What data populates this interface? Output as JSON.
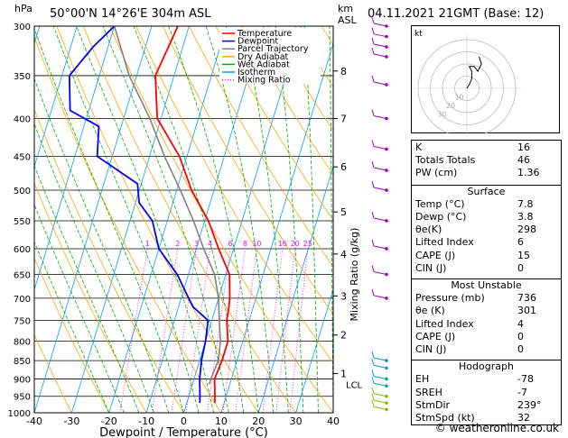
{
  "header": {
    "left": "50°00'N  14°26'E  304m  ASL",
    "hpa_unit": "hPa",
    "km_unit_1": "km",
    "km_unit_2": "ASL",
    "right": "04.11.2021  21GMT  (Base: 12)"
  },
  "chart_data": {
    "type": "line",
    "xlabel": "Dewpoint / Temperature (°C)",
    "ylabel_right": "Mixing Ratio (g/kg)",
    "x_ticks": [
      -40,
      -30,
      -20,
      -10,
      0,
      10,
      20,
      30,
      40
    ],
    "x_range": [
      -40,
      40
    ],
    "pressure_levels": [
      300,
      350,
      400,
      450,
      500,
      550,
      600,
      650,
      700,
      750,
      800,
      850,
      900,
      950,
      1000
    ],
    "pressure_range": [
      300,
      1000
    ],
    "km_ticks": [
      {
        "label": "8",
        "p": 345
      },
      {
        "label": "7",
        "p": 400
      },
      {
        "label": "6",
        "p": 465
      },
      {
        "label": "5",
        "p": 535
      },
      {
        "label": "4",
        "p": 610
      },
      {
        "label": "3",
        "p": 695
      },
      {
        "label": "2",
        "p": 785
      },
      {
        "label": "1",
        "p": 885
      }
    ],
    "lcl": {
      "label": "LCL",
      "p": 915
    },
    "mixing_ratio_labels": [
      "1",
      "2",
      "3",
      "4",
      "6",
      "8",
      "10",
      "16",
      "20",
      "25"
    ],
    "legend": [
      {
        "name": "Temperature",
        "color": "#ff0000",
        "style": "solid"
      },
      {
        "name": "Dewpoint",
        "color": "#0000ff",
        "style": "solid"
      },
      {
        "name": "Parcel Trajectory",
        "color": "#808080",
        "style": "solid"
      },
      {
        "name": "Dry Adiabat",
        "color": "#ffa500",
        "style": "solid"
      },
      {
        "name": "Wet Adiabat",
        "color": "#00b000",
        "style": "solid"
      },
      {
        "name": "Isotherm",
        "color": "#00a0ff",
        "style": "solid"
      },
      {
        "name": "Mixing Ratio",
        "color": "#ff00ff",
        "style": "dotted"
      }
    ],
    "series": [
      {
        "name": "Temperature",
        "color": "#ff0000",
        "points": [
          [
            300,
            -33
          ],
          [
            350,
            -35
          ],
          [
            400,
            -31
          ],
          [
            450,
            -22
          ],
          [
            500,
            -16
          ],
          [
            550,
            -9
          ],
          [
            600,
            -4
          ],
          [
            650,
            1
          ],
          [
            700,
            3
          ],
          [
            720,
            3.5
          ],
          [
            750,
            4
          ],
          [
            800,
            6
          ],
          [
            850,
            6
          ],
          [
            900,
            5.5
          ],
          [
            950,
            7
          ],
          [
            970,
            7.5
          ]
        ]
      },
      {
        "name": "Dewpoint",
        "color": "#0000ff",
        "points": [
          [
            300,
            -50
          ],
          [
            320,
            -54
          ],
          [
            350,
            -58
          ],
          [
            390,
            -55
          ],
          [
            410,
            -46
          ],
          [
            450,
            -44
          ],
          [
            490,
            -31
          ],
          [
            520,
            -29
          ],
          [
            550,
            -24
          ],
          [
            600,
            -20
          ],
          [
            650,
            -13
          ],
          [
            700,
            -8
          ],
          [
            720,
            -6
          ],
          [
            750,
            -1
          ],
          [
            800,
            0
          ],
          [
            850,
            0.5
          ],
          [
            900,
            1.5
          ],
          [
            950,
            3
          ],
          [
            970,
            3.5
          ]
        ]
      },
      {
        "name": "Parcel Trajectory",
        "color": "#808080",
        "points": [
          [
            300,
            -50
          ],
          [
            350,
            -42
          ],
          [
            400,
            -33
          ],
          [
            450,
            -26
          ],
          [
            500,
            -19
          ],
          [
            550,
            -13
          ],
          [
            600,
            -8
          ],
          [
            650,
            -3
          ],
          [
            700,
            0
          ],
          [
            750,
            2
          ],
          [
            800,
            4
          ],
          [
            850,
            5
          ],
          [
            900,
            4.5
          ],
          [
            915,
            4.5
          ]
        ]
      }
    ]
  },
  "hodograph": {
    "unit": "kt",
    "ring_labels": [
      "10",
      "20",
      "30"
    ],
    "trace_kt": [
      [
        0,
        0
      ],
      [
        2,
        3
      ],
      [
        4,
        8
      ],
      [
        4,
        14
      ],
      [
        2,
        18
      ],
      [
        6,
        18
      ],
      [
        9,
        14
      ],
      [
        12,
        20
      ],
      [
        10,
        26
      ]
    ]
  },
  "indices": [
    {
      "label": "K",
      "value": "16"
    },
    {
      "label": "Totals Totals",
      "value": "46"
    },
    {
      "label": "PW (cm)",
      "value": "1.36"
    }
  ],
  "surface": {
    "title": "Surface",
    "rows": [
      {
        "label": "Temp (°C)",
        "value": "7.8"
      },
      {
        "label": "Dewp (°C)",
        "value": "3.8"
      },
      {
        "label": "θe(K)",
        "value": "298"
      },
      {
        "label": "Lifted Index",
        "value": "6"
      },
      {
        "label": "CAPE (J)",
        "value": "15"
      },
      {
        "label": "CIN (J)",
        "value": "0"
      }
    ]
  },
  "most_unstable": {
    "title": "Most Unstable",
    "rows": [
      {
        "label": "Pressure (mb)",
        "value": "736"
      },
      {
        "label": "θe (K)",
        "value": "301"
      },
      {
        "label": "Lifted Index",
        "value": "4"
      },
      {
        "label": "CAPE (J)",
        "value": "0"
      },
      {
        "label": "CIN (J)",
        "value": "0"
      }
    ]
  },
  "hodograph_stats": {
    "title": "Hodograph",
    "rows": [
      {
        "label": "EH",
        "value": "-78"
      },
      {
        "label": "SREH",
        "value": "-7"
      },
      {
        "label": "StmDir",
        "value": "239°"
      },
      {
        "label": "StmSpd (kt)",
        "value": "32"
      }
    ]
  },
  "footer": "© weatheronline.co.uk"
}
